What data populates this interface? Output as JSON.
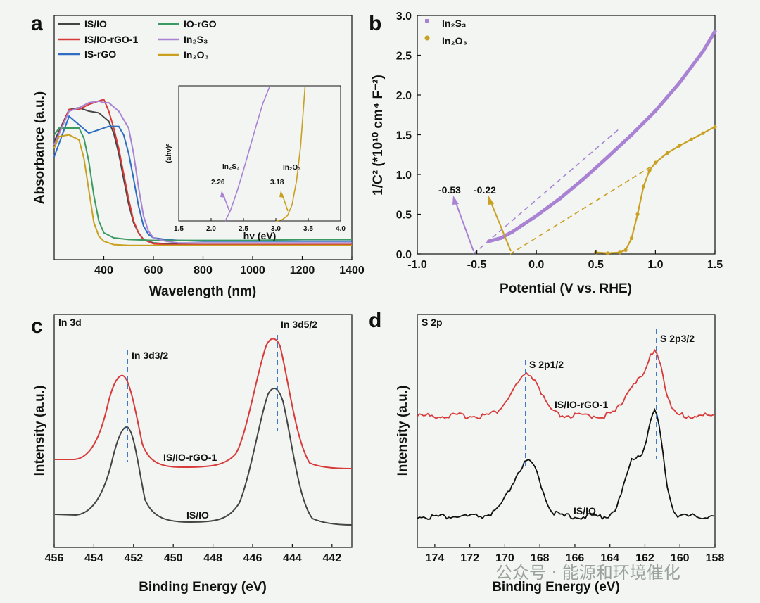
{
  "colors": {
    "IS_IO": "#444444",
    "IS_IO_rGO_1": "#d83a3a",
    "IS_rGO": "#2f6cc4",
    "IO_rGO": "#3a9a62",
    "In2S3": "#a982d4",
    "In2O3": "#c9a020",
    "frame": "#111111",
    "bg": "#f2f5f2"
  },
  "watermark": "公众号 · 能源和环境催化",
  "chart_data": [
    {
      "panel": "a",
      "type": "line",
      "xlabel": "Wavelength (nm)",
      "ylabel": "Absorbance (a.u.)",
      "xlim": [
        200,
        1400
      ],
      "x_ticks": [
        400,
        600,
        800,
        1000,
        1200,
        1400
      ],
      "ylim": [
        0,
        1
      ],
      "legend": {
        "position": "top-left",
        "columns": 2
      },
      "series": [
        {
          "name": "IS/IO",
          "color": "#444444",
          "x": [
            200,
            260,
            300,
            340,
            380,
            420,
            440,
            460,
            480,
            500,
            520,
            540,
            560,
            600,
            650,
            700,
            800,
            1000,
            1200,
            1400
          ],
          "values": [
            0.62,
            0.81,
            0.82,
            0.8,
            0.79,
            0.74,
            0.67,
            0.55,
            0.4,
            0.25,
            0.14,
            0.08,
            0.04,
            0.02,
            0.015,
            0.012,
            0.01,
            0.01,
            0.01,
            0.01
          ]
        },
        {
          "name": "IS/IO-rGO-1",
          "color": "#d83a3a",
          "x": [
            200,
            260,
            300,
            340,
            380,
            400,
            420,
            440,
            460,
            480,
            500,
            520,
            540,
            560,
            600,
            650,
            700,
            800,
            1000,
            1200,
            1400
          ],
          "values": [
            0.6,
            0.81,
            0.81,
            0.84,
            0.86,
            0.87,
            0.8,
            0.7,
            0.58,
            0.43,
            0.28,
            0.15,
            0.08,
            0.04,
            0.015,
            0.01,
            0.01,
            0.01,
            0.01,
            0.01,
            0.01
          ]
        },
        {
          "name": "IS-rGO",
          "color": "#2f6cc4",
          "x": [
            200,
            260,
            300,
            340,
            380,
            420,
            460,
            480,
            500,
            520,
            540,
            560,
            580,
            600,
            650,
            700,
            800,
            1000,
            1200,
            1400
          ],
          "values": [
            0.53,
            0.77,
            0.72,
            0.67,
            0.69,
            0.71,
            0.71,
            0.66,
            0.55,
            0.4,
            0.24,
            0.12,
            0.07,
            0.05,
            0.04,
            0.035,
            0.03,
            0.03,
            0.03,
            0.03
          ]
        },
        {
          "name": "IO-rGO",
          "color": "#3a9a62",
          "x": [
            200,
            220,
            260,
            300,
            320,
            340,
            360,
            380,
            400,
            440,
            500,
            600,
            800,
            1000,
            1200,
            1400
          ],
          "values": [
            0.66,
            0.7,
            0.7,
            0.7,
            0.64,
            0.5,
            0.3,
            0.15,
            0.08,
            0.05,
            0.04,
            0.035,
            0.035,
            0.035,
            0.04,
            0.04
          ]
        },
        {
          "name": "In₂S₃",
          "color": "#a982d4",
          "x": [
            200,
            260,
            300,
            340,
            380,
            400,
            420,
            460,
            500,
            520,
            540,
            560,
            580,
            600,
            650,
            700,
            800,
            1000,
            1200,
            1400
          ],
          "values": [
            0.6,
            0.8,
            0.82,
            0.85,
            0.86,
            0.85,
            0.85,
            0.8,
            0.7,
            0.55,
            0.35,
            0.18,
            0.09,
            0.05,
            0.03,
            0.02,
            0.02,
            0.02,
            0.02,
            0.02
          ]
        },
        {
          "name": "In₂O₃",
          "color": "#c9a020",
          "x": [
            200,
            220,
            260,
            300,
            320,
            340,
            360,
            380,
            400,
            440,
            500,
            600,
            800,
            1000,
            1400
          ],
          "values": [
            0.58,
            0.65,
            0.66,
            0.63,
            0.52,
            0.33,
            0.14,
            0.06,
            0.03,
            0.01,
            0.005,
            0.005,
            0.005,
            0.005,
            0.005
          ]
        }
      ],
      "inset": {
        "xlabel": "hv (eV)",
        "ylabel": "(ahv)²",
        "xlim": [
          1.5,
          4.0
        ],
        "x_ticks": [
          "1.5",
          "2.0",
          "2.5",
          "3.0",
          "3.5",
          "4.0"
        ],
        "series": [
          {
            "name": "In₂S₃",
            "color": "#a982d4",
            "x": [
              2.22,
              2.3,
              2.4,
              2.5,
              2.6,
              2.7,
              2.8,
              2.9
            ],
            "values": [
              0.0,
              0.08,
              0.22,
              0.38,
              0.55,
              0.72,
              0.88,
              1.0
            ]
          },
          {
            "name": "In₂O₃",
            "color": "#c9a020",
            "x": [
              3.0,
              3.1,
              3.18,
              3.25,
              3.32,
              3.38,
              3.42,
              3.45
            ],
            "values": [
              0.0,
              0.01,
              0.04,
              0.12,
              0.3,
              0.55,
              0.8,
              1.0
            ]
          }
        ],
        "annotations": [
          {
            "label": "In₂S₃",
            "value": "2.26"
          },
          {
            "label": "In₂O₃",
            "value": "3.18"
          }
        ]
      }
    },
    {
      "panel": "b",
      "type": "scatter",
      "xlabel": "Potential (V vs. RHE)",
      "ylabel": "1/C² (*10¹⁰ cm⁴ F⁻²)",
      "xlim": [
        -1.0,
        1.5
      ],
      "x_ticks": [
        "-1.0",
        "-0.5",
        "0.0",
        "0.5",
        "1.0",
        "1.5"
      ],
      "ylim": [
        0.0,
        3.0
      ],
      "y_ticks": [
        "0.0",
        "0.5",
        "1.0",
        "1.5",
        "2.0",
        "2.5",
        "3.0"
      ],
      "legend": {
        "position": "top-left"
      },
      "series": [
        {
          "name": "In₂S₃",
          "color": "#a982d4",
          "x": [
            -0.4,
            -0.3,
            -0.2,
            -0.1,
            0.0,
            0.2,
            0.4,
            0.6,
            0.8,
            1.0,
            1.2,
            1.4,
            1.5
          ],
          "values": [
            0.16,
            0.2,
            0.28,
            0.38,
            0.48,
            0.7,
            0.95,
            1.22,
            1.5,
            1.8,
            2.15,
            2.55,
            2.8
          ]
        },
        {
          "name": "In₂O₃",
          "color": "#c9a020",
          "x": [
            0.5,
            0.6,
            0.7,
            0.75,
            0.8,
            0.85,
            0.9,
            0.95,
            1.0,
            1.1,
            1.2,
            1.3,
            1.4,
            1.5
          ],
          "values": [
            0.02,
            0.01,
            0.02,
            0.05,
            0.2,
            0.5,
            0.85,
            1.05,
            1.15,
            1.27,
            1.36,
            1.44,
            1.52,
            1.6
          ]
        }
      ],
      "annotations": [
        {
          "label": "-0.53",
          "x": -0.53
        },
        {
          "label": "-0.22",
          "x": -0.22
        }
      ]
    },
    {
      "panel": "c",
      "type": "line",
      "title": "In 3d",
      "xlabel": "Binding Energy (eV)",
      "ylabel": "Intensity (a.u.)",
      "xlim": [
        456,
        441
      ],
      "x_ticks": [
        "456",
        "454",
        "452",
        "450",
        "448",
        "446",
        "444",
        "442"
      ],
      "series": [
        {
          "name": "IS/IO-rGO-1",
          "color": "#d83a3a",
          "peaks": [
            452.5,
            444.9
          ]
        },
        {
          "name": "IS/IO",
          "color": "#444444",
          "peaks": [
            452.4,
            444.8
          ]
        }
      ],
      "annotations": [
        {
          "label": "In 3d3/2",
          "x": 452.4
        },
        {
          "label": "In 3d5/2",
          "x": 444.8
        }
      ]
    },
    {
      "panel": "d",
      "type": "line",
      "title": "S 2p",
      "xlabel": "Binding Energy (eV)",
      "ylabel": "Intensity (a.u.)",
      "xlim": [
        175,
        158
      ],
      "x_ticks": [
        "174",
        "172",
        "170",
        "168",
        "166",
        "164",
        "162",
        "160",
        "158"
      ],
      "series": [
        {
          "name": "IS/IO-rGO-1",
          "color": "#d83a3a",
          "peaks": [
            169.0,
            161.4
          ]
        },
        {
          "name": "IS/IO",
          "color": "#111111",
          "peaks": [
            169.0,
            161.3
          ]
        }
      ],
      "annotations": [
        {
          "label": "S 2p1/2",
          "x": 168.8
        },
        {
          "label": "S 2p3/2",
          "x": 161.4
        }
      ]
    }
  ]
}
